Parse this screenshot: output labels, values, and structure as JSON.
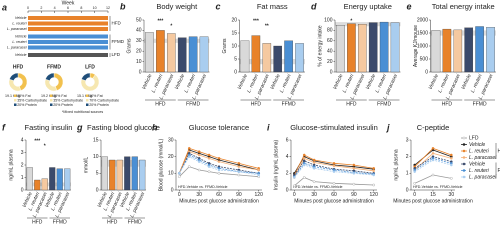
{
  "chart_data": [
    {
      "type": "timeline",
      "panel": "a",
      "xlabel": "Week",
      "xticks": [
        0,
        2,
        4,
        6,
        8,
        10,
        12
      ],
      "xlim": [
        0,
        12
      ],
      "groups": [
        {
          "name": "HFD",
          "color": "#e8822a",
          "rows": [
            "Vehicle",
            "L. reuteri",
            "L. paracasei"
          ]
        },
        {
          "name": "FFMD",
          "color": "#4a8fd4",
          "rows": [
            "Vehicle",
            "L. reuteri",
            "L. paracasei"
          ]
        },
        {
          "name": "LFD",
          "color": "#555555",
          "rows": [
            "Vehicle"
          ]
        }
      ],
      "pies": [
        {
          "name": "HFD",
          "energy": "19.1 KJ/g",
          "values": [
            45,
            35,
            20
          ],
          "labels": [
            "45% Fat",
            "35% Carbohydrate",
            "20% Protein"
          ],
          "colors": [
            "#f2c14e",
            "#f6e7b0",
            "#1f4e79"
          ]
        },
        {
          "name": "FFMD",
          "energy": "19.2 KJ/g",
          "values": [
            45,
            35,
            20
          ],
          "labels": [
            "45% Fat",
            "35% Carbohydrate",
            "20% Protein"
          ],
          "colors": [
            "#f2c14e",
            "#f6e7b0",
            "#1f4e79"
          ]
        },
        {
          "name": "LFD",
          "energy": "15.1 KJ/g",
          "values": [
            10,
            70,
            20
          ],
          "labels": [
            "10% Fat",
            "70% Carbohydrate",
            "20% Protein"
          ],
          "colors": [
            "#f2c14e",
            "#f6e7b0",
            "#1f4e79"
          ]
        }
      ],
      "note": "*Mixed nutritional sources"
    },
    {
      "type": "bar",
      "panel": "b",
      "title": "Body weight",
      "ylabel": "Grams",
      "categories": [
        "Vehicle",
        "L. reuteri",
        "L. paracasei",
        "Vehicle",
        "L. reuteri",
        "L. paracasei"
      ],
      "groups": [
        "HFD",
        "FFMD"
      ],
      "colors": [
        "#d9d9d9",
        "#e8822a",
        "#f5c9a0",
        "#3b4a6b",
        "#4a8fd4",
        "#a9cdef"
      ],
      "values": [
        38,
        40,
        37,
        33,
        34,
        34
      ],
      "ylim": [
        0,
        50
      ],
      "yticks": [
        0,
        10,
        20,
        30,
        40,
        50
      ],
      "band": [
        28,
        32
      ],
      "annotations": [
        "***",
        "*"
      ]
    },
    {
      "type": "bar",
      "panel": "c",
      "title": "Fat mass",
      "ylabel": "Grams",
      "categories": [
        "Vehicle",
        "L. reuteri",
        "L. paracasei",
        "Vehicle",
        "L. reuteri",
        "L. paracasei"
      ],
      "groups": [
        "HFD",
        "FFMD"
      ],
      "colors": [
        "#d9d9d9",
        "#e8822a",
        "#f5c9a0",
        "#3b4a6b",
        "#4a8fd4",
        "#a9cdef"
      ],
      "values": [
        12,
        14,
        11,
        10,
        12,
        11
      ],
      "ylim": [
        0,
        20
      ],
      "yticks": [
        0,
        5,
        10,
        15,
        20
      ],
      "band": [
        3,
        5
      ],
      "annotations": [
        "***",
        "**"
      ]
    },
    {
      "type": "bar",
      "panel": "d",
      "title": "Energy uptake",
      "ylabel": "% of energy intake",
      "categories": [
        "Vehicle",
        "L. reuteri",
        "L. paracasei",
        "Vehicle",
        "L. reuteri",
        "L. paracasei"
      ],
      "groups": [
        "HFD",
        "FFMD"
      ],
      "colors": [
        "#d9d9d9",
        "#e8822a",
        "#f5c9a0",
        "#3b4a6b",
        "#4a8fd4",
        "#a9cdef"
      ],
      "values": [
        90,
        93,
        92,
        95,
        96,
        95
      ],
      "ylim": [
        0,
        100
      ],
      "yticks": [
        0,
        20,
        40,
        60,
        80,
        100
      ],
      "band": [
        88,
        96
      ],
      "annotations": [
        "*"
      ]
    },
    {
      "type": "bar",
      "panel": "e",
      "title": "Total energy intake",
      "ylabel": "Average KJ/mouse",
      "categories": [
        "Vehicle",
        "L. reuteri",
        "L. paracasei",
        "Vehicle",
        "L. reuteri",
        "L. paracasei"
      ],
      "groups": [
        "HFD",
        "FFMD"
      ],
      "colors": [
        "#d9d9d9",
        "#e8822a",
        "#f5c9a0",
        "#3b4a6b",
        "#4a8fd4",
        "#a9cdef"
      ],
      "values": [
        1600,
        1650,
        1620,
        1700,
        1750,
        1720
      ],
      "ylim": [
        0,
        2000
      ],
      "yticks": [
        0,
        500,
        1000,
        1500,
        2000
      ],
      "band": [
        1400,
        1600
      ],
      "annotations": []
    },
    {
      "type": "bar",
      "panel": "f",
      "title": "Fasting insulin",
      "ylabel": "ng/mL plasma",
      "categories": [
        "Vehicle",
        "L. reuteri",
        "L. paracasei",
        "Vehicle",
        "L. reuteri",
        "L. paracasei"
      ],
      "groups": [
        "HFD",
        "FFMD"
      ],
      "colors": [
        "#d9d9d9",
        "#e8822a",
        "#f5c9a0",
        "#3b4a6b",
        "#4a8fd4",
        "#a9cdef"
      ],
      "values": [
        1.8,
        0.8,
        0.9,
        1.8,
        1.7,
        1.7
      ],
      "ylim": [
        0,
        4
      ],
      "yticks": [
        0,
        1,
        2,
        3,
        4
      ],
      "band": [
        0.3,
        0.6
      ],
      "annotations": [
        "***",
        "*"
      ]
    },
    {
      "type": "bar",
      "panel": "g",
      "title": "Fasting blood glucose",
      "ylabel": "mmol/L",
      "categories": [
        "Vehicle",
        "L. reuteri",
        "L. paracasei",
        "Vehicle",
        "L. reuteri",
        "L. paracasei"
      ],
      "groups": [
        "HFD",
        "FFMD"
      ],
      "colors": [
        "#d9d9d9",
        "#e8822a",
        "#f5c9a0",
        "#3b4a6b",
        "#4a8fd4",
        "#a9cdef"
      ],
      "values": [
        10,
        9,
        9,
        10,
        10,
        9
      ],
      "ylim": [
        0,
        15
      ],
      "yticks": [
        0,
        5,
        10,
        15
      ],
      "band": [
        7,
        9
      ],
      "annotations": []
    },
    {
      "type": "line",
      "panel": "h",
      "title": "Glucose tolerance",
      "ylabel": "Blood glucose (mmol/L)",
      "xlabel": "Minutes post glucose administration",
      "x": [
        0,
        15,
        30,
        45,
        60,
        90,
        120
      ],
      "xlim": [
        -5,
        125
      ],
      "xticks": [
        0,
        30,
        60,
        90,
        120
      ],
      "ylim": [
        0,
        30
      ],
      "yticks": [
        0,
        10,
        20,
        30
      ],
      "annotation": "HFD-Vehicle vs. FFMD-Vehicle",
      "series": [
        {
          "color": "#999999",
          "dash": false,
          "values": [
            8,
            14,
            12,
            11,
            10,
            9,
            8
          ]
        },
        {
          "color": "#222222",
          "dash": false,
          "values": [
            10,
            24,
            22,
            20,
            18,
            15,
            12
          ]
        },
        {
          "color": "#e8822a",
          "dash": false,
          "values": [
            10,
            25,
            23,
            21,
            19,
            16,
            13
          ]
        },
        {
          "color": "#f5b27a",
          "dash": false,
          "values": [
            10,
            23,
            21,
            19,
            17,
            14,
            12
          ]
        },
        {
          "color": "#3b4a6b",
          "dash": true,
          "values": [
            10,
            22,
            19,
            16,
            14,
            12,
            10
          ]
        },
        {
          "color": "#4a8fd4",
          "dash": true,
          "values": [
            10,
            21,
            18,
            15,
            13,
            11,
            10
          ]
        },
        {
          "color": "#a9cdef",
          "dash": true,
          "values": [
            10,
            20,
            17,
            14,
            12,
            11,
            9
          ]
        }
      ]
    },
    {
      "type": "line",
      "panel": "i",
      "title": "Glucose-stimulated insulin",
      "ylabel": "Insulin (ng/mL plasma)",
      "xlabel": "Minutes post glucose administration",
      "x": [
        0,
        15,
        30,
        60,
        90,
        120
      ],
      "xlim": [
        -5,
        125
      ],
      "xticks": [
        0,
        30,
        60,
        90,
        120
      ],
      "ylim": [
        0,
        6
      ],
      "yticks": [
        0,
        2,
        4,
        6
      ],
      "annotation": "HFD-Vehicle vs. FFMD-Vehicle",
      "series": [
        {
          "color": "#999999",
          "dash": false,
          "values": [
            0.5,
            1.5,
            1.0,
            0.8,
            0.7,
            0.6
          ]
        },
        {
          "color": "#222222",
          "dash": false,
          "values": [
            2,
            4,
            3.5,
            3,
            2.8,
            2.5
          ]
        },
        {
          "color": "#e8822a",
          "dash": false,
          "values": [
            1.8,
            4.2,
            3.6,
            3.2,
            3,
            2.6
          ]
        },
        {
          "color": "#f5b27a",
          "dash": false,
          "values": [
            1.5,
            3.8,
            3.3,
            2.9,
            2.6,
            2.3
          ]
        },
        {
          "color": "#3b4a6b",
          "dash": true,
          "values": [
            1.8,
            3.5,
            3,
            2.5,
            2.3,
            2
          ]
        },
        {
          "color": "#4a8fd4",
          "dash": true,
          "values": [
            1.6,
            3.2,
            2.8,
            2.4,
            2.1,
            1.9
          ]
        },
        {
          "color": "#a9cdef",
          "dash": true,
          "values": [
            1.5,
            3,
            2.6,
            2.2,
            2,
            1.8
          ]
        }
      ]
    },
    {
      "type": "line",
      "panel": "j",
      "title": "C-peptide",
      "ylabel": "ng/mL plasma",
      "xlabel": "Minutes post glucose administration",
      "x": [
        0,
        15,
        30
      ],
      "xlim": [
        -3,
        33
      ],
      "xticks": [
        0,
        15,
        30
      ],
      "ylim": [
        0,
        3
      ],
      "yticks": [
        0,
        1,
        2,
        3
      ],
      "annotation": "HFD-Vehicle vs. FFMD-Vehicle",
      "legend_groups": [
        "HFD",
        "FFMD"
      ],
      "series": [
        {
          "name": "LFD",
          "color": "#999999",
          "dash": false,
          "values": [
            0.4,
            0.9,
            0.7
          ]
        },
        {
          "name": "Vehicle",
          "color": "#222222",
          "dash": false,
          "values": [
            1.5,
            2.4,
            2.0
          ]
        },
        {
          "name": "L. reuteri",
          "color": "#e8822a",
          "dash": false,
          "values": [
            1.4,
            2.5,
            2.1
          ]
        },
        {
          "name": "L. paracasei",
          "color": "#f5b27a",
          "dash": false,
          "values": [
            1.2,
            2.2,
            1.9
          ]
        },
        {
          "name": "Vehicle",
          "color": "#3b4a6b",
          "dash": true,
          "values": [
            1.3,
            2.0,
            1.7
          ]
        },
        {
          "name": "L. reuteri",
          "color": "#4a8fd4",
          "dash": true,
          "values": [
            1.2,
            1.9,
            1.6
          ]
        },
        {
          "name": "L. paracasei",
          "color": "#a9cdef",
          "dash": true,
          "values": [
            1.1,
            1.8,
            1.5
          ]
        }
      ]
    }
  ]
}
